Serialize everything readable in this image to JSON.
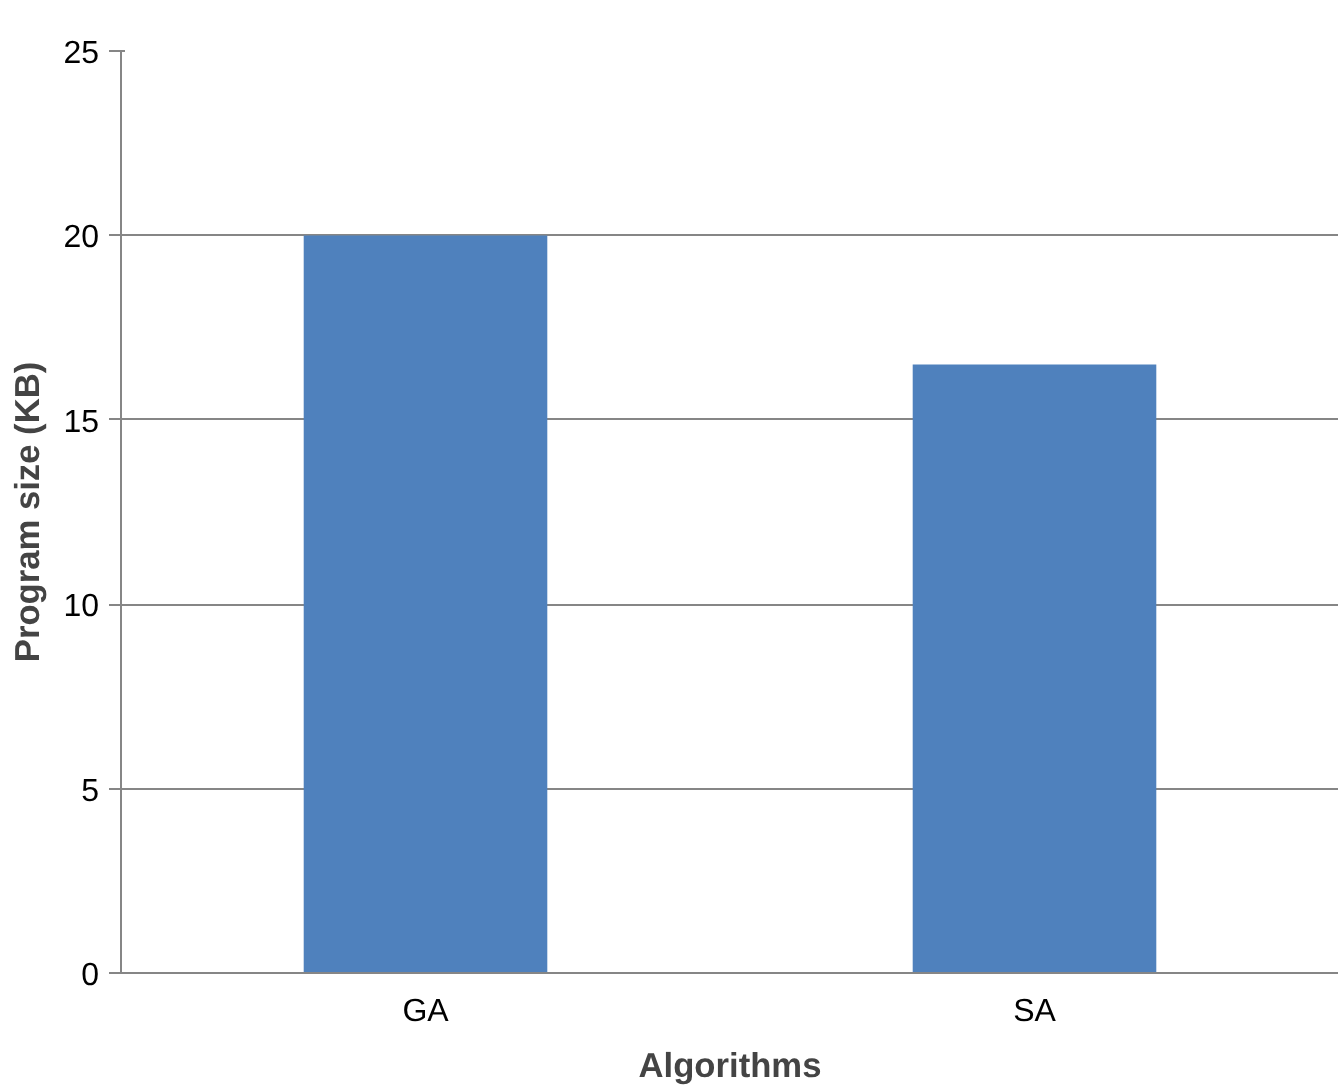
{
  "chart_data": {
    "type": "bar",
    "xlabel": "Algorithms",
    "ylabel": "Program size (KB)",
    "categories": [
      "GA",
      "SA"
    ],
    "values": [
      20,
      16.5
    ],
    "color": "#4f81bd",
    "ylim": [
      0,
      25
    ],
    "yticks": [
      0,
      5,
      10,
      15,
      20,
      25
    ],
    "grid": "y"
  }
}
